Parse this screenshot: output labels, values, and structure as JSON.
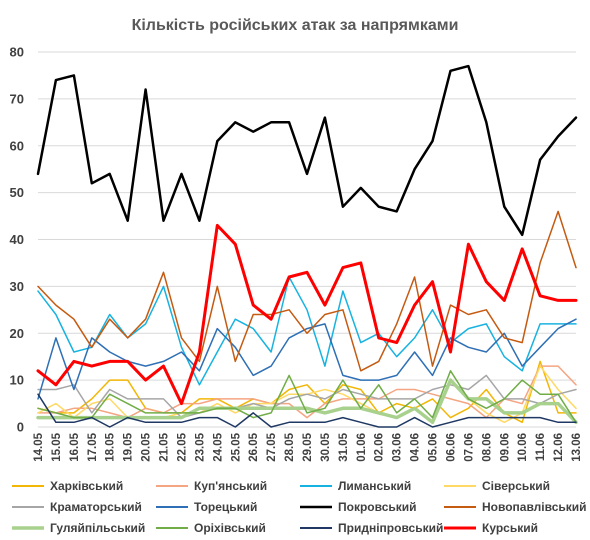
{
  "chart_data": {
    "type": "line",
    "title": "Кількість російських атак за напрямками",
    "xlabel": "",
    "ylabel": "",
    "ylim": [
      0,
      80
    ],
    "yticks": [
      "0",
      "10",
      "20",
      "30",
      "40",
      "50",
      "60",
      "70",
      "80"
    ],
    "grid": true,
    "legend_position": "bottom",
    "categories": [
      "14.05",
      "15.05",
      "16.05",
      "17.05",
      "18.05",
      "19.05",
      "20.05",
      "21.05",
      "22.05",
      "23.05",
      "24.05",
      "25.05",
      "26.05",
      "27.05",
      "28.05",
      "29.05",
      "30.05",
      "31.05",
      "01.06",
      "02.06",
      "03.06",
      "04.06",
      "05.06",
      "06.06",
      "07.06",
      "08.06",
      "09.06",
      "10.06",
      "11.06",
      "12.06",
      "13.06"
    ],
    "series": [
      {
        "name": "Харківський",
        "color": "#f2b705",
        "width": 1.5,
        "values": [
          4,
          3,
          3,
          6,
          10,
          10,
          4,
          3,
          3,
          6,
          6,
          4,
          6,
          5,
          8,
          9,
          5,
          9,
          8,
          3,
          5,
          4,
          6,
          2,
          4,
          8,
          3,
          1,
          14,
          3,
          3
        ]
      },
      {
        "name": "Куп'янський",
        "color": "#f4a582",
        "width": 1.5,
        "values": [
          3,
          3,
          4,
          4,
          3,
          2,
          4,
          3,
          5,
          5,
          6,
          6,
          6,
          5,
          5,
          2,
          5,
          6,
          6,
          6,
          8,
          8,
          7,
          6,
          5,
          2,
          6,
          5,
          13,
          13,
          9
        ]
      },
      {
        "name": "Лиманський",
        "color": "#17b3e0",
        "width": 1.5,
        "values": [
          29,
          24,
          16,
          17,
          24,
          19,
          22,
          30,
          17,
          9,
          16,
          23,
          21,
          16,
          32,
          25,
          13,
          29,
          18,
          20,
          15,
          19,
          25,
          18,
          21,
          22,
          15,
          12,
          22,
          22,
          22
        ]
      },
      {
        "name": "Сіверський",
        "color": "#ffd966",
        "width": 1.5,
        "values": [
          3,
          5,
          2,
          5,
          6,
          2,
          2,
          2,
          3,
          3,
          5,
          3,
          5,
          5,
          7,
          7,
          8,
          7,
          5,
          3,
          2,
          4,
          1,
          10,
          6,
          3,
          1,
          3,
          13,
          8,
          4
        ]
      },
      {
        "name": "Краматорський",
        "color": "#a6a6a6",
        "width": 1.5,
        "values": [
          8,
          8,
          9,
          3,
          8,
          6,
          6,
          6,
          2,
          3,
          4,
          4,
          5,
          4,
          6,
          7,
          6,
          8,
          7,
          6,
          6,
          6,
          8,
          9,
          8,
          11,
          6,
          6,
          5,
          7,
          8
        ]
      },
      {
        "name": "Торецький",
        "color": "#2e6fb5",
        "width": 1.5,
        "values": [
          6,
          19,
          8,
          19,
          16,
          14,
          13,
          14,
          16,
          12,
          21,
          17,
          11,
          13,
          19,
          21,
          22,
          11,
          10,
          10,
          11,
          16,
          11,
          19,
          17,
          16,
          20,
          13,
          17,
          21,
          23
        ]
      },
      {
        "name": "Покровський",
        "color": "#000000",
        "width": 2.5,
        "values": [
          54,
          74,
          75,
          52,
          54,
          44,
          72,
          44,
          54,
          44,
          61,
          65,
          63,
          65,
          65,
          54,
          66,
          47,
          51,
          47,
          46,
          55,
          61,
          76,
          77,
          65,
          47,
          41,
          57,
          62,
          66
        ]
      },
      {
        "name": "Новопавлівський",
        "color": "#c55a11",
        "width": 1.5,
        "values": [
          30,
          26,
          23,
          17,
          23,
          19,
          23,
          33,
          19,
          14,
          30,
          14,
          24,
          24,
          25,
          20,
          24,
          25,
          12,
          14,
          22,
          32,
          13,
          26,
          24,
          25,
          19,
          18,
          35,
          46,
          34
        ]
      },
      {
        "name": "Гуляйпільський",
        "color": "#a9d18e",
        "width": 3.5,
        "values": [
          2,
          2,
          2,
          2,
          2,
          2,
          2,
          2,
          2,
          4,
          4,
          4,
          4,
          4,
          4,
          4,
          3,
          4,
          4,
          3,
          2,
          4,
          1,
          10,
          6,
          6,
          3,
          3,
          5,
          5,
          1
        ]
      },
      {
        "name": "Оріхівський",
        "color": "#70ad47",
        "width": 1.5,
        "values": [
          4,
          3,
          2,
          2,
          7,
          5,
          3,
          3,
          3,
          3,
          4,
          4,
          2,
          3,
          11,
          3,
          4,
          10,
          4,
          9,
          3,
          6,
          2,
          12,
          6,
          4,
          6,
          10,
          7,
          7,
          1
        ]
      },
      {
        "name": "Придніпровський",
        "color": "#1f3864",
        "width": 1.5,
        "values": [
          7,
          1,
          1,
          2,
          0,
          2,
          1,
          1,
          1,
          2,
          2,
          0,
          3,
          0,
          1,
          1,
          1,
          2,
          1,
          0,
          0,
          2,
          0,
          1,
          2,
          2,
          2,
          2,
          2,
          1,
          1
        ]
      },
      {
        "name": "Курський",
        "color": "#ff0000",
        "width": 3,
        "values": [
          12,
          9,
          14,
          13,
          14,
          14,
          10,
          13,
          5,
          16,
          43,
          39,
          26,
          23,
          32,
          33,
          26,
          34,
          35,
          19,
          18,
          26,
          31,
          16,
          39,
          31,
          27,
          38,
          28,
          27,
          27
        ]
      }
    ]
  }
}
